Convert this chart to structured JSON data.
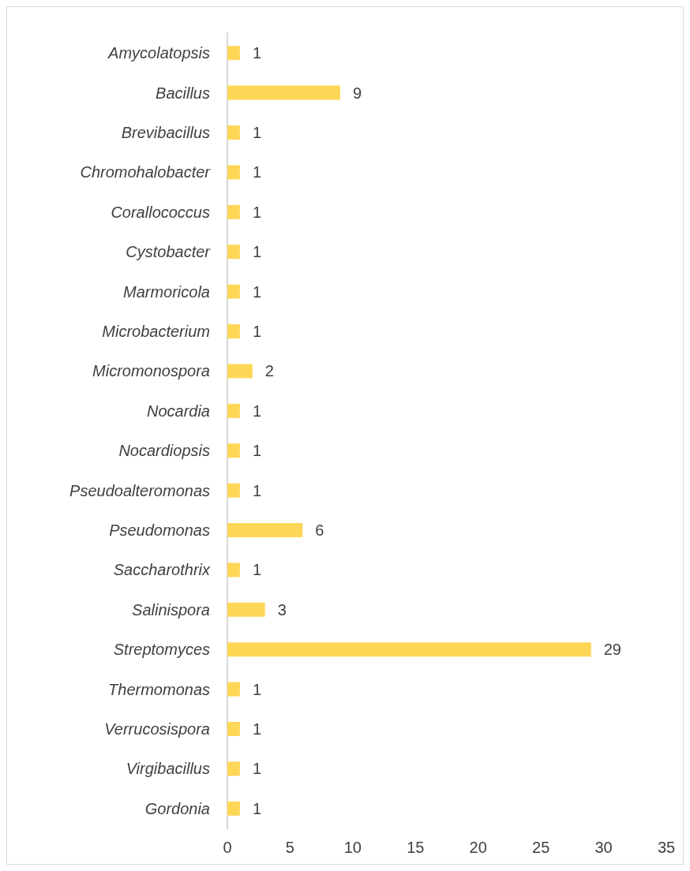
{
  "chart_data": {
    "type": "bar",
    "orientation": "horizontal",
    "categories": [
      "Amycolatopsis",
      "Bacillus",
      "Brevibacillus",
      "Chromohalobacter",
      "Corallococcus",
      "Cystobacter",
      "Marmoricola",
      "Microbacterium",
      "Micromonospora",
      "Nocardia",
      "Nocardiopsis",
      "Pseudoalteromonas",
      "Pseudomonas",
      "Saccharothrix",
      "Salinispora",
      "Streptomyces",
      "Thermomonas",
      "Verrucosispora",
      "Virgibacillus",
      "Gordonia"
    ],
    "values": [
      1,
      9,
      1,
      1,
      1,
      1,
      1,
      1,
      2,
      1,
      1,
      1,
      6,
      1,
      3,
      29,
      1,
      1,
      1,
      1
    ],
    "color": "#ffd757",
    "xlim": [
      0,
      35
    ],
    "xticks": [
      0,
      5,
      10,
      15,
      20,
      25,
      30,
      35
    ],
    "grid": false,
    "data_labels": true
  }
}
